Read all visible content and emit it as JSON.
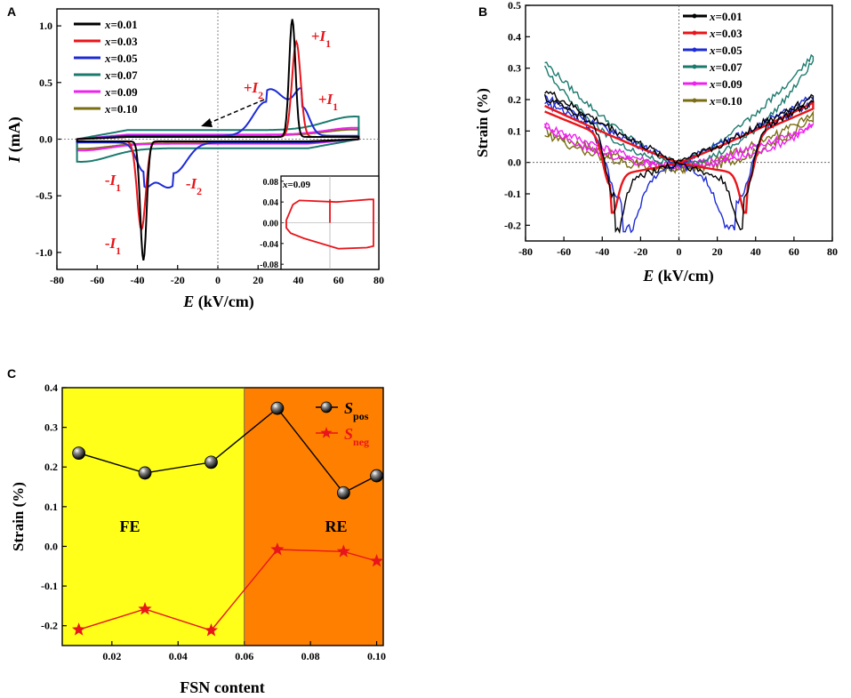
{
  "panels": {
    "A": {
      "letter": "A",
      "xlabel": "E (kV/cm)",
      "ylabel": "I (mA)",
      "legend": [
        {
          "label": "x=0.01",
          "color": "#000000"
        },
        {
          "label": "x=0.03",
          "color": "#e8151b"
        },
        {
          "label": "x=0.05",
          "color": "#1d2bd6"
        },
        {
          "label": "x=0.07",
          "color": "#1b7a6e"
        },
        {
          "label": "x=0.09",
          "color": "#ee22ee"
        },
        {
          "label": "x=0.10",
          "color": "#7a6d12"
        }
      ],
      "annotations": [
        "+I1",
        "+I2",
        "+I1",
        "-I1",
        "-I2",
        "-I1"
      ],
      "inset": {
        "label": "x=0.09",
        "yticks": [
          "0.08",
          "0.04",
          "0.00",
          "-0.04",
          "-0.08"
        ]
      }
    },
    "B": {
      "letter": "B",
      "xlabel": "E (kV/cm)",
      "ylabel": "Strain (%)",
      "legend": [
        {
          "label": "x=0.01",
          "color": "#000000"
        },
        {
          "label": "x=0.03",
          "color": "#e8151b"
        },
        {
          "label": "x=0.05",
          "color": "#1d2bd6"
        },
        {
          "label": "x=0.07",
          "color": "#1b7a6e"
        },
        {
          "label": "x=0.09",
          "color": "#ee22ee"
        },
        {
          "label": "x=0.10",
          "color": "#7a6d12"
        }
      ]
    },
    "C": {
      "letter": "C",
      "xlabel": "FSN content",
      "ylabel": "Strain (%)",
      "region_labels": [
        "FE",
        "RE"
      ],
      "legend": [
        {
          "label": "S",
          "sub": "pos",
          "color": "#000000"
        },
        {
          "label": "S",
          "sub": "neg",
          "color": "#e8151b"
        }
      ]
    }
  },
  "chart_data": [
    {
      "id": "A",
      "type": "line",
      "title": "",
      "xlabel": "E (kV/cm)",
      "ylabel": "I (mA)",
      "xlim": [
        -80,
        80
      ],
      "ylim": [
        -1.15,
        1.15
      ],
      "xticks": [
        -80,
        -60,
        -40,
        -20,
        0,
        20,
        40,
        60,
        80
      ],
      "yticks": [
        -1.0,
        -0.5,
        0.0,
        0.5,
        1.0
      ],
      "ytick_labels": [
        "-1.0",
        "-0.5",
        "0.0",
        "0.5",
        "1.0"
      ],
      "series": [
        {
          "name": "x=0.01",
          "color": "#000000",
          "peak_pos": {
            "E": 37,
            "I": 1.04
          },
          "peak_neg": {
            "E": -37,
            "I": -1.05
          },
          "width": 2.2,
          "base": 0.02
        },
        {
          "name": "x=0.03",
          "color": "#e8151b",
          "peak_pos": {
            "E": 39,
            "I": 0.84
          },
          "peak_neg": {
            "E": -38,
            "I": -0.78
          },
          "width": 3.0,
          "base": 0.02
        },
        {
          "name": "x=0.05",
          "color": "#1d2bd6",
          "peak_pos": {
            "E": 24,
            "I": 0.3
          },
          "peak_neg": {
            "E": -22,
            "I": -0.27
          },
          "width": 9.0,
          "base": 0.03,
          "shoulder_pos": {
            "E": 42,
            "I": 0.25
          },
          "shoulder_neg": {
            "E": -37,
            "I": -0.24
          }
        },
        {
          "name": "x=0.07",
          "color": "#1b7a6e",
          "peak_pos": {
            "E": 68,
            "I": 0.12
          },
          "peak_neg": {
            "E": -68,
            "I": -0.12
          },
          "width": 20,
          "base": 0.08
        },
        {
          "name": "x=0.09",
          "color": "#ee22ee",
          "peak_pos": {
            "E": 68,
            "I": 0.06
          },
          "peak_neg": {
            "E": -68,
            "I": -0.06
          },
          "width": 20,
          "base": 0.04
        },
        {
          "name": "x=0.10",
          "color": "#7a6d12",
          "peak_pos": {
            "E": 68,
            "I": 0.05
          },
          "peak_neg": {
            "E": -68,
            "I": -0.05
          },
          "width": 20,
          "base": 0.035
        }
      ],
      "inset": {
        "label": "x=0.09",
        "ylim": [
          -0.08,
          0.08
        ],
        "loop": [
          [
            -1,
            0.005
          ],
          [
            -0.85,
            0.035
          ],
          [
            -0.7,
            0.043
          ],
          [
            0.15,
            0.04
          ],
          [
            0.9,
            0.045
          ],
          [
            1,
            0.045
          ],
          [
            1,
            -0.045
          ],
          [
            0.85,
            -0.048
          ],
          [
            0.2,
            -0.05
          ],
          [
            -0.6,
            -0.03
          ],
          [
            -0.9,
            -0.02
          ],
          [
            -1,
            -0.01
          ]
        ]
      }
    },
    {
      "id": "B",
      "type": "line",
      "title": "",
      "xlabel": "E (kV/cm)",
      "ylabel": "Strain (%)",
      "xlim": [
        -80,
        80
      ],
      "ylim": [
        -0.25,
        0.5
      ],
      "xticks": [
        -80,
        -60,
        -40,
        -20,
        0,
        20,
        40,
        60,
        80
      ],
      "yticks": [
        -0.2,
        -0.1,
        0.0,
        0.1,
        0.2,
        0.3,
        0.4,
        0.5
      ],
      "ytick_labels": [
        "-0.2",
        "-0.1",
        "0.0",
        "0.1",
        "0.2",
        "0.3",
        "0.4",
        "0.5"
      ],
      "series": [
        {
          "name": "x=0.01",
          "color": "#000000",
          "max_left": 0.23,
          "max_right": 0.21,
          "min": -0.2,
          "min_E": 34,
          "minw": 6,
          "noise": 0.012
        },
        {
          "name": "x=0.03",
          "color": "#e8151b",
          "max_left": 0.18,
          "max_right": 0.19,
          "min": -0.15,
          "min_E": 36,
          "minw": 5,
          "noise": 0.0
        },
        {
          "name": "x=0.05",
          "color": "#1d2bd6",
          "max_left": 0.21,
          "max_right": 0.21,
          "min": -0.2,
          "min_E": 30,
          "minw": 10,
          "noise": 0.012
        },
        {
          "name": "x=0.07",
          "color": "#1b7a6e",
          "max_left": 0.32,
          "max_right": 0.34,
          "min": 0.0,
          "min_E": 0,
          "minw": 5,
          "noise": 0.01
        },
        {
          "name": "x=0.09",
          "color": "#ee22ee",
          "max_left": 0.13,
          "max_right": 0.13,
          "min": -0.01,
          "min_E": 0,
          "minw": 5,
          "noise": 0.012
        },
        {
          "name": "x=0.10",
          "color": "#7a6d12",
          "max_left": 0.12,
          "max_right": 0.17,
          "min": -0.02,
          "min_E": 0,
          "minw": 5,
          "noise": 0.014
        }
      ]
    },
    {
      "id": "C",
      "type": "line",
      "title": "",
      "xlabel": "FSN content",
      "ylabel": "Strain (%)",
      "xlim": [
        0.005,
        0.102
      ],
      "ylim": [
        -0.25,
        0.4
      ],
      "xticks": [
        0.02,
        0.04,
        0.06,
        0.08,
        0.1
      ],
      "xtick_labels": [
        "0.02",
        "0.04",
        "0.06",
        "0.08",
        "0.10"
      ],
      "yticks": [
        -0.2,
        -0.1,
        0.0,
        0.1,
        0.2,
        0.3,
        0.4
      ],
      "ytick_labels": [
        "-0.2",
        "-0.1",
        "0.0",
        "0.1",
        "0.2",
        "0.3",
        "0.4"
      ],
      "regions": [
        {
          "label": "FE",
          "from": 0.005,
          "to": 0.06,
          "color": "#ffff1a"
        },
        {
          "label": "RE",
          "from": 0.06,
          "to": 0.102,
          "color": "#ff8000"
        }
      ],
      "x": [
        0.01,
        0.03,
        0.05,
        0.07,
        0.09,
        0.1
      ],
      "series": [
        {
          "name": "Spos",
          "color": "#000000",
          "marker": "sphere",
          "values": [
            0.235,
            0.185,
            0.212,
            0.348,
            0.135,
            0.178
          ]
        },
        {
          "name": "Sneg",
          "color": "#e8151b",
          "marker": "star",
          "values": [
            -0.21,
            -0.158,
            -0.212,
            -0.008,
            -0.013,
            -0.037
          ]
        }
      ]
    }
  ]
}
